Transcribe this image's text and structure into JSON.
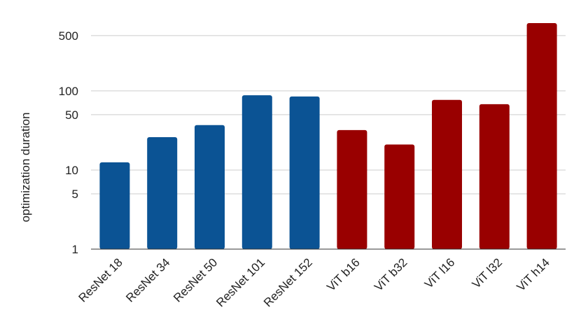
{
  "chart_data": {
    "type": "bar",
    "title": "",
    "xlabel": "",
    "ylabel": "optimization duration",
    "yscale": "log",
    "ylim": [
      1,
      900
    ],
    "yticks": [
      1,
      5,
      10,
      50,
      100,
      500
    ],
    "grid": true,
    "categories": [
      "ResNet 18",
      "ResNet 34",
      "ResNet 50",
      "ResNet 101",
      "ResNet 152",
      "ViT b16",
      "ViT b32",
      "ViT l16",
      "ViT l32",
      "ViT h14"
    ],
    "values": [
      12.5,
      26,
      37,
      88,
      85,
      32,
      21,
      77,
      68,
      720
    ],
    "colors": [
      "#0b5394",
      "#0b5394",
      "#0b5394",
      "#0b5394",
      "#0b5394",
      "#990000",
      "#990000",
      "#990000",
      "#990000",
      "#990000"
    ]
  }
}
